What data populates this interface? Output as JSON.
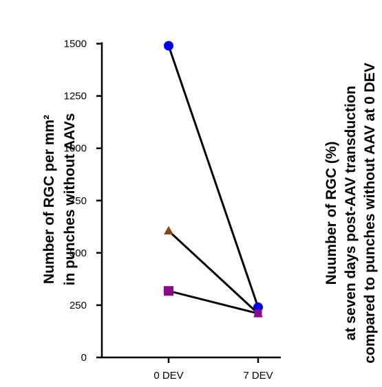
{
  "chart_data": {
    "type": "line",
    "categories": [
      "0 DEV",
      "7 DEV"
    ],
    "y_ticks": [
      0,
      250,
      500,
      750,
      1000,
      1250,
      1500
    ],
    "y_tick_labels": [
      "0",
      "250",
      "500",
      "750",
      "1000",
      "1250",
      "1500"
    ],
    "ylim": [
      0,
      1550
    ],
    "ylabel_lines": [
      "Number of RGC per mm²",
      "in punches without AAVs"
    ],
    "right_label_lines": [
      "Nuumber of RGC (%)",
      "at seven days post-AAV transduction",
      "compared to punches without AAV at 0 DEV"
    ],
    "grid": false,
    "series": [
      {
        "marker": "circle",
        "color": "#0000ee",
        "values": [
          1490,
          240
        ]
      },
      {
        "marker": "triangle",
        "color": "#8b4513",
        "values": [
          605,
          210
        ]
      },
      {
        "marker": "square",
        "color": "#8b0a8b",
        "values": [
          318,
          210
        ]
      }
    ]
  }
}
